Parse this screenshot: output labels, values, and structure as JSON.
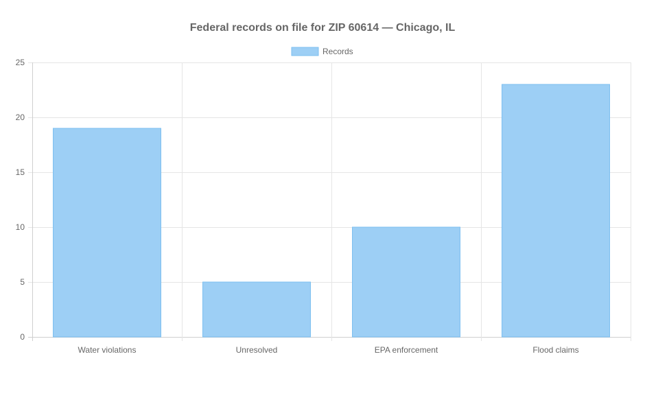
{
  "chart_data": {
    "type": "bar",
    "title": "Federal records on file for ZIP 60614 — Chicago, IL",
    "categories": [
      "Water violations",
      "Unresolved",
      "EPA enforcement",
      "Flood claims"
    ],
    "series": [
      {
        "name": "Records",
        "values": [
          19,
          5,
          10,
          23
        ]
      }
    ],
    "ylim": [
      0,
      25
    ],
    "yticks": [
      0,
      5,
      10,
      15,
      20,
      25
    ],
    "grid": true,
    "legend_position": "top",
    "colors": {
      "bar_fill": "#9dcff5",
      "bar_stroke": "#7cbff0",
      "grid": "#e5e5e5",
      "text": "#666666"
    }
  }
}
